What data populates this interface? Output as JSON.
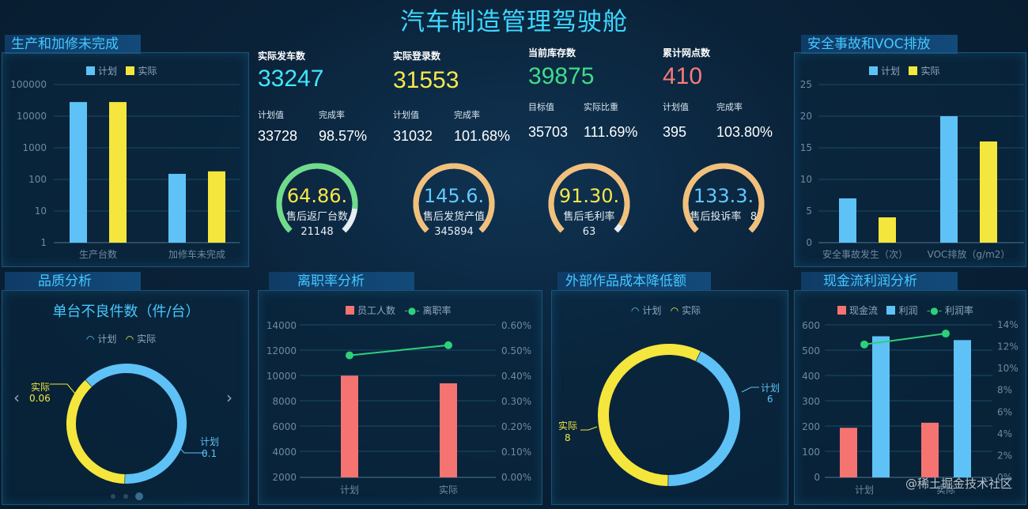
{
  "title": "汽车制造管理驾驶舱",
  "watermark": "@稀土掘金技术社区",
  "colors": {
    "plan": "#5ec2f7",
    "actual": "#f4e63c",
    "staff": "#f57370",
    "rate": "#2ed07a"
  },
  "panels": {
    "production": {
      "tab": "生产和加修未完成",
      "legend": [
        "计划",
        "实际"
      ],
      "chart_data": {
        "type": "bar",
        "yscale": "log",
        "categories": [
          "生产台数",
          "加修车未完成"
        ],
        "series": [
          {
            "name": "计划",
            "values": [
              28000,
              150
            ]
          },
          {
            "name": "实际",
            "values": [
              28000,
              180
            ]
          }
        ],
        "yticks": [
          "1",
          "10",
          "100",
          "1000",
          "10000",
          "100000"
        ],
        "ylim": [
          1,
          100000
        ]
      }
    },
    "safety": {
      "tab": "安全事故和VOC排放",
      "legend": [
        "计划",
        "实际"
      ],
      "chart_data": {
        "type": "bar",
        "categories": [
          "安全事故发生（次）",
          "VOC排放（g/m2）"
        ],
        "series": [
          {
            "name": "计划",
            "values": [
              7,
              20
            ]
          },
          {
            "name": "实际",
            "values": [
              4,
              16
            ]
          }
        ],
        "yticks": [
          "0",
          "5",
          "10",
          "15",
          "20",
          "25"
        ],
        "ylim": [
          0,
          25
        ]
      }
    },
    "quality": {
      "tab": "品质分析",
      "chart_title": "单台不良件数（件/台）",
      "legend": [
        "计划",
        "实际"
      ],
      "chart_data": {
        "type": "pie",
        "slices": [
          {
            "name": "计划",
            "value": 0.1
          },
          {
            "name": "实际",
            "value": 0.06
          }
        ]
      },
      "labels": {
        "plan_name": "计划",
        "plan_value": "0.1",
        "actual_name": "实际",
        "actual_value": "0.06"
      }
    },
    "turnover": {
      "tab": "离职率分析",
      "legend": [
        "员工人数",
        "离职率"
      ],
      "chart_data": {
        "type": "bar",
        "categories": [
          "计划",
          "实际"
        ],
        "series": [
          {
            "name": "员工人数",
            "values": [
              10000,
              9400
            ]
          },
          {
            "name": "离职率",
            "type": "line",
            "values": [
              0.48,
              0.52
            ]
          }
        ],
        "yticks": [
          "2000",
          "4000",
          "6000",
          "8000",
          "10000",
          "12000",
          "14000"
        ],
        "y2ticks": [
          "0.00%",
          "0.10%",
          "0.20%",
          "0.30%",
          "0.40%",
          "0.50%",
          "0.60%"
        ],
        "ylim": [
          2000,
          14000
        ],
        "y2lim": [
          0,
          0.6
        ]
      }
    },
    "cost": {
      "tab": "外部作品成本降低额",
      "legend": [
        "计划",
        "实际"
      ],
      "chart_data": {
        "type": "pie",
        "slices": [
          {
            "name": "计划",
            "value": 6
          },
          {
            "name": "实际",
            "value": 8
          }
        ]
      },
      "labels": {
        "plan_name": "计划",
        "plan_value": "6",
        "actual_name": "实际",
        "actual_value": "8"
      }
    },
    "cashflow": {
      "tab": "现金流利润分析",
      "legend": [
        "现金流",
        "利润",
        "利润率"
      ],
      "chart_data": {
        "type": "bar",
        "categories": [
          "计划",
          "实际"
        ],
        "series": [
          {
            "name": "现金流",
            "values": [
              195,
              215
            ]
          },
          {
            "name": "利润",
            "values": [
              555,
              540
            ]
          },
          {
            "name": "利润率",
            "type": "line",
            "values": [
              12.2,
              13.2
            ]
          }
        ],
        "yticks": [
          "0",
          "100",
          "200",
          "300",
          "400",
          "500",
          "600"
        ],
        "y2ticks": [
          "0%",
          "2%",
          "4%",
          "6%",
          "8%",
          "10%",
          "12%",
          "14%"
        ],
        "ylim": [
          0,
          600
        ],
        "y2lim": [
          0,
          14
        ]
      }
    }
  },
  "kpis": [
    {
      "label": "实际发车数",
      "value": "33247",
      "color": "#3ee8ff",
      "sub1_label": "计划值",
      "sub2_label": "完成率",
      "sub1_value": "33728",
      "sub2_value": "98.57%"
    },
    {
      "label": "实际登录数",
      "value": "31553",
      "color": "#f7e84a",
      "sub1_label": "计划值",
      "sub2_label": "完成率",
      "sub1_value": "31032",
      "sub2_value": "101.68%"
    },
    {
      "label": "当前库存数",
      "value": "39875",
      "color": "#3fdc8a",
      "sub1_label": "目标值",
      "sub2_label": "实际比重",
      "sub1_value": "35703",
      "sub2_value": "111.69%"
    },
    {
      "label": "累计网点数",
      "value": "410",
      "color": "#f87a7c",
      "sub1_label": "计划值",
      "sub2_label": "完成率",
      "sub1_value": "395",
      "sub2_value": "103.80%"
    }
  ],
  "gauges": [
    {
      "value_text": "64.86.",
      "label": "售后返厂台数",
      "sub": "21148",
      "value_color": "#f7e84a",
      "ring": "#6fdc8c",
      "fill_pct": 86
    },
    {
      "value_text": "145.6.",
      "label": "售后发货产值",
      "sub": "345894",
      "value_color": "#63c8ff",
      "ring": "#f2c07b",
      "fill_pct": 100
    },
    {
      "value_text": "91.30.",
      "label": "售后毛利率",
      "sub": "63",
      "value_color": "#f7e84a",
      "ring": "#f2c07b",
      "fill_pct": 96
    },
    {
      "value_text": "133.3.",
      "label": "售后投诉率",
      "sub": "8",
      "value_color": "#63c8ff",
      "ring": "#f2c07b",
      "fill_pct": 100
    }
  ]
}
